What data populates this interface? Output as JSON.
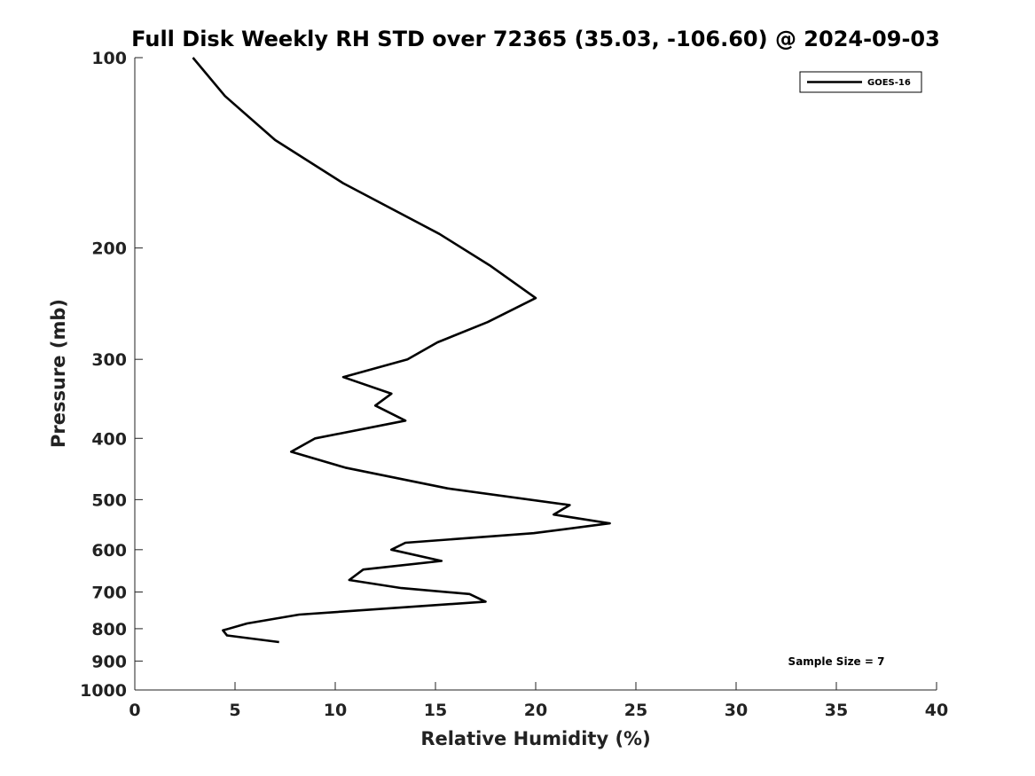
{
  "chart_data": {
    "type": "line",
    "title": "Full Disk Weekly RH STD over 72365 (35.03, -106.60) @ 2024-09-03",
    "xlabel": "Relative Humidity (%)",
    "ylabel": "Pressure (mb)",
    "xlim": [
      0,
      40
    ],
    "ylim": [
      100,
      1000
    ],
    "yscale": "log",
    "yaxis_inverted": true,
    "xticks": [
      0,
      5,
      10,
      15,
      20,
      25,
      30,
      35,
      40
    ],
    "xtick_labels": [
      "0",
      "5",
      "10",
      "15",
      "20",
      "25",
      "30",
      "35",
      "40"
    ],
    "yticks": [
      100,
      200,
      300,
      400,
      500,
      600,
      700,
      800,
      900,
      1000
    ],
    "ytick_labels": [
      "100",
      "200",
      "300",
      "400",
      "500",
      "600",
      "700",
      "800",
      "900",
      "1000"
    ],
    "grid": false,
    "legend_position": "top-right",
    "series": [
      {
        "name": "GOES-16",
        "color": "#000000",
        "x": [
          2.9,
          4.5,
          7.0,
          10.4,
          15.2,
          17.7,
          20.0,
          17.6,
          15.1,
          13.6,
          10.4,
          12.8,
          12.0,
          13.5,
          9.0,
          7.8,
          10.5,
          15.6,
          21.7,
          20.9,
          23.7,
          19.9,
          13.5,
          12.8,
          15.3,
          11.4,
          10.7,
          13.3,
          16.7,
          17.5,
          8.2,
          5.6,
          4.4,
          4.6,
          7.2
        ],
        "y": [
          100,
          115,
          135,
          158,
          190,
          213,
          240,
          262,
          282,
          300,
          320,
          340,
          355,
          375,
          400,
          420,
          445,
          480,
          510,
          528,
          545,
          565,
          585,
          600,
          625,
          645,
          670,
          690,
          705,
          725,
          760,
          785,
          805,
          820,
          840
        ]
      }
    ],
    "annotations": [
      {
        "text": "Sample Size = 7"
      }
    ]
  }
}
